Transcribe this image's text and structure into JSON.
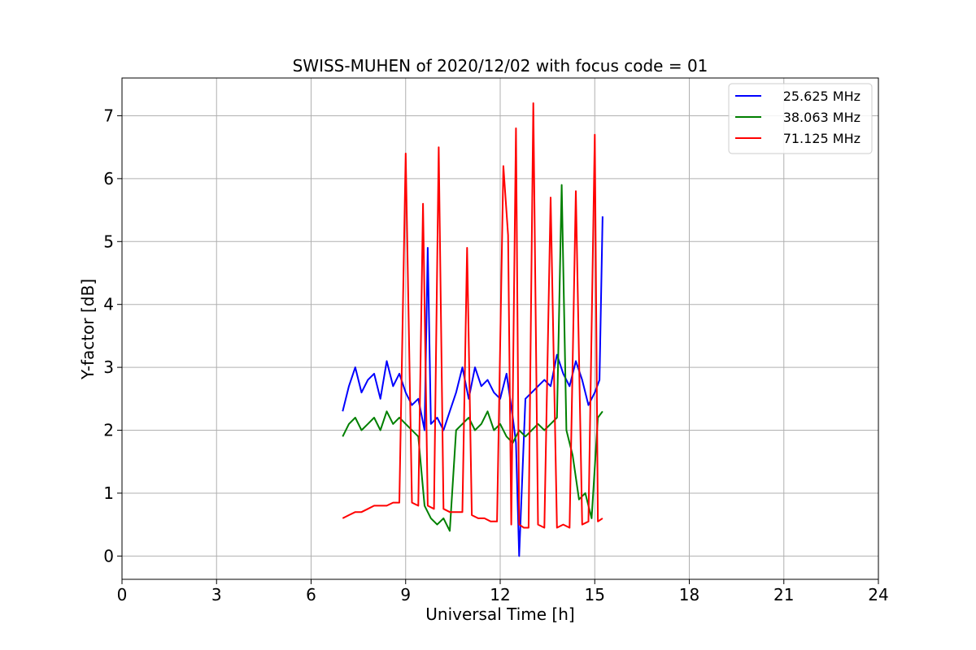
{
  "chart_data": {
    "type": "line",
    "title": "SWISS-MUHEN of 2020/12/02 with focus code = 01",
    "xlabel": "Universal Time [h]",
    "ylabel": "Y-factor [dB]",
    "xlim": [
      0,
      24
    ],
    "ylim": [
      -0.37,
      7.6
    ],
    "xticks": [
      0,
      3,
      6,
      9,
      12,
      15,
      18,
      21,
      24
    ],
    "yticks": [
      0,
      1,
      2,
      3,
      4,
      5,
      6,
      7
    ],
    "grid": true,
    "legend_position": "top-right",
    "series": [
      {
        "name": "25.625 MHz",
        "color": "#0000ff",
        "x": [
          7.0,
          7.2,
          7.4,
          7.6,
          7.8,
          8.0,
          8.2,
          8.4,
          8.6,
          8.8,
          9.0,
          9.2,
          9.4,
          9.6,
          9.7,
          9.8,
          10.0,
          10.2,
          10.4,
          10.6,
          10.8,
          11.0,
          11.2,
          11.4,
          11.6,
          11.8,
          12.0,
          12.2,
          12.4,
          12.5,
          12.6,
          12.8,
          13.0,
          13.2,
          13.4,
          13.6,
          13.8,
          14.0,
          14.2,
          14.4,
          14.6,
          14.8,
          15.0,
          15.15,
          15.25
        ],
        "y": [
          2.3,
          2.7,
          3.0,
          2.6,
          2.8,
          2.9,
          2.5,
          3.1,
          2.7,
          2.9,
          2.6,
          2.4,
          2.5,
          2.0,
          4.9,
          2.1,
          2.2,
          2.0,
          2.3,
          2.6,
          3.0,
          2.5,
          3.0,
          2.7,
          2.8,
          2.6,
          2.5,
          2.9,
          2.2,
          1.8,
          0.0,
          2.5,
          2.6,
          2.7,
          2.8,
          2.7,
          3.2,
          2.9,
          2.7,
          3.1,
          2.8,
          2.4,
          2.6,
          2.8,
          5.4
        ]
      },
      {
        "name": "38.063 MHz",
        "color": "#008000",
        "x": [
          7.0,
          7.2,
          7.4,
          7.6,
          7.8,
          8.0,
          8.2,
          8.4,
          8.6,
          8.8,
          9.0,
          9.2,
          9.4,
          9.6,
          9.8,
          10.0,
          10.2,
          10.4,
          10.6,
          10.8,
          11.0,
          11.2,
          11.4,
          11.6,
          11.8,
          12.0,
          12.2,
          12.4,
          12.6,
          12.8,
          13.0,
          13.2,
          13.4,
          13.6,
          13.8,
          13.95,
          14.1,
          14.3,
          14.5,
          14.7,
          14.9,
          15.1,
          15.25
        ],
        "y": [
          1.9,
          2.1,
          2.2,
          2.0,
          2.1,
          2.2,
          2.0,
          2.3,
          2.1,
          2.2,
          2.1,
          2.0,
          1.9,
          0.8,
          0.6,
          0.5,
          0.6,
          0.4,
          2.0,
          2.1,
          2.2,
          2.0,
          2.1,
          2.3,
          2.0,
          2.1,
          1.9,
          1.8,
          2.0,
          1.9,
          2.0,
          2.1,
          2.0,
          2.1,
          2.2,
          5.9,
          2.0,
          1.6,
          0.9,
          1.0,
          0.6,
          2.2,
          2.3
        ]
      },
      {
        "name": "71.125 MHz",
        "color": "#ff0000",
        "x": [
          7.0,
          7.2,
          7.4,
          7.6,
          7.8,
          8.0,
          8.2,
          8.4,
          8.6,
          8.8,
          9.0,
          9.2,
          9.4,
          9.55,
          9.7,
          9.9,
          10.05,
          10.2,
          10.4,
          10.6,
          10.8,
          10.95,
          11.1,
          11.3,
          11.5,
          11.7,
          11.9,
          12.1,
          12.25,
          12.35,
          12.5,
          12.6,
          12.75,
          12.9,
          13.05,
          13.2,
          13.4,
          13.6,
          13.8,
          14.0,
          14.2,
          14.4,
          14.6,
          14.8,
          15.0,
          15.1,
          15.25
        ],
        "y": [
          0.6,
          0.65,
          0.7,
          0.7,
          0.75,
          0.8,
          0.8,
          0.8,
          0.85,
          0.85,
          6.4,
          0.85,
          0.8,
          5.6,
          0.8,
          0.75,
          6.5,
          0.75,
          0.7,
          0.7,
          0.7,
          4.9,
          0.65,
          0.6,
          0.6,
          0.55,
          0.55,
          6.2,
          5.1,
          0.5,
          6.8,
          0.5,
          0.45,
          0.45,
          7.2,
          0.5,
          0.45,
          5.7,
          0.45,
          0.5,
          0.45,
          5.8,
          0.5,
          0.55,
          6.7,
          0.55,
          0.6
        ]
      }
    ]
  }
}
